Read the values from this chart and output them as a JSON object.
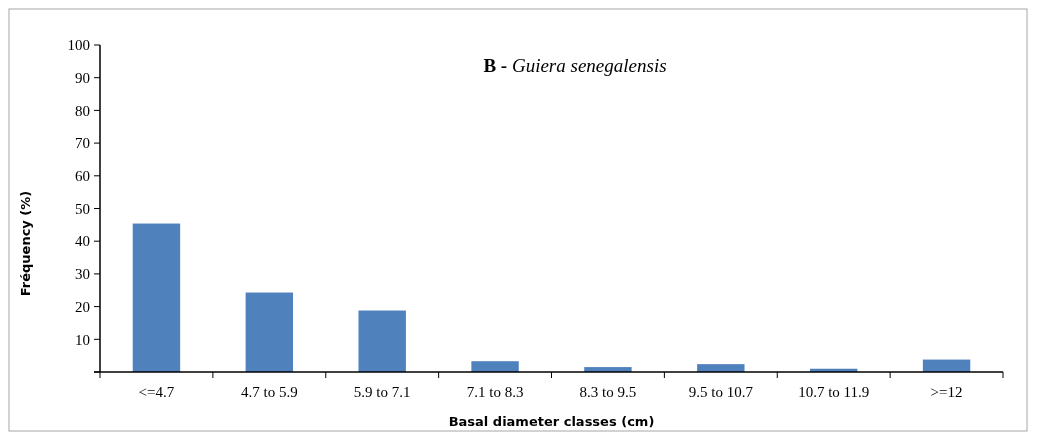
{
  "chart_data": {
    "type": "bar",
    "title": "B - Guiera senegalensis",
    "xlabel": "Basal diameter classes (cm)",
    "ylabel": "Fréquency (%)",
    "categories": [
      "<=4.7",
      "4.7 to 5.9",
      "5.9 to 7.1",
      "7.1 to 8.3",
      "8.3 to 9.5",
      "9.5 to 10.7",
      "10.7 to 11.9",
      ">=12"
    ],
    "values": [
      45.4,
      24.3,
      18.8,
      3.3,
      1.5,
      2.4,
      1.0,
      3.8
    ],
    "color": "#4f81bd",
    "ylim": [
      0,
      100
    ],
    "yticks": [
      {
        "value": 0,
        "label": null
      },
      10,
      20,
      30,
      40,
      50,
      60,
      70,
      80,
      90,
      100
    ],
    "grid": false
  }
}
